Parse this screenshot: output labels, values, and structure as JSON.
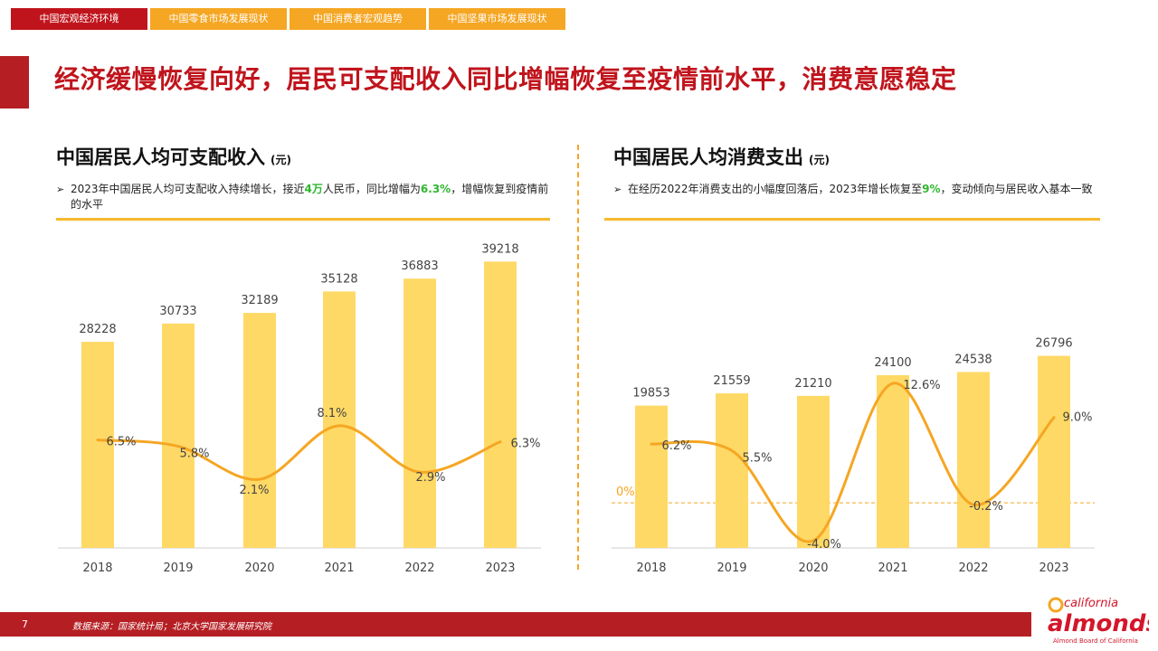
{
  "nav": {
    "tabs": [
      {
        "label": "中国宏观经济环境",
        "active": true
      },
      {
        "label": "中国零食市场发展现状",
        "active": false
      },
      {
        "label": "中国消费者宏观趋势",
        "active": false
      },
      {
        "label": "中国坚果市场发展现状",
        "active": false
      }
    ]
  },
  "headline": "经济缓慢恢复向好，居民可支配收入同比增幅恢复至疫情前水平，消费意愿稳定",
  "left": {
    "title": "中国居民人均可支配收入",
    "unit": "(元)",
    "note": {
      "bullet": "➢",
      "pre": "2023年中国居民人均可支配收入持续增长，接近",
      "hl1": "4万",
      "mid": "人民币，同比增幅为",
      "hl2": "6.3%",
      "post": "，增幅恢复到疫情前的水平"
    }
  },
  "right": {
    "title": "中国居民人均消费支出",
    "unit": "(元)",
    "note": {
      "bullet": "➢",
      "pre": "在经历2022年消费支出的小幅度回落后，2023年增长恢复至",
      "hl1": "9%",
      "post": "，变动倾向与居民收入基本一致"
    }
  },
  "chart_data": [
    {
      "type": "bar",
      "title": "中国居民人均可支配收入",
      "categories": [
        "2018",
        "2019",
        "2020",
        "2021",
        "2022",
        "2023"
      ],
      "values": [
        28228,
        30733,
        32189,
        35128,
        36883,
        39218
      ],
      "bar_labels": [
        "28228",
        "30733",
        "32189",
        "35128",
        "36883",
        "39218"
      ],
      "growth_rate_pct": [
        6.5,
        5.8,
        2.1,
        8.1,
        2.9,
        6.3
      ],
      "growth_labels": [
        "6.5%",
        "5.8%",
        "2.1%",
        "8.1%",
        "2.9%",
        "6.3%"
      ],
      "colors": {
        "bar": "#ffd966",
        "line": "#f5a623"
      }
    },
    {
      "type": "bar",
      "title": "中国居民人均消费支出",
      "categories": [
        "2018",
        "2019",
        "2020",
        "2021",
        "2022",
        "2023"
      ],
      "values": [
        19853,
        21559,
        21210,
        24100,
        24538,
        26796
      ],
      "bar_labels": [
        "19853",
        "21559",
        "21210",
        "24100",
        "24538",
        "26796"
      ],
      "growth_rate_pct": [
        6.2,
        5.5,
        -4.0,
        12.6,
        -0.2,
        9.0
      ],
      "growth_labels": [
        "6.2%",
        "5.5%",
        "-4.0%",
        "12.6%",
        "-0.2%",
        "9.0%"
      ],
      "zero_label": "0%",
      "colors": {
        "bar": "#ffd966",
        "line": "#f5a623"
      }
    }
  ],
  "footer": {
    "page": "7",
    "source": "数据来源：国家统计局；北京大学国家发展研究院"
  },
  "logo": {
    "top": "california",
    "main": "almonds",
    "sub": "Almond Board of California"
  }
}
